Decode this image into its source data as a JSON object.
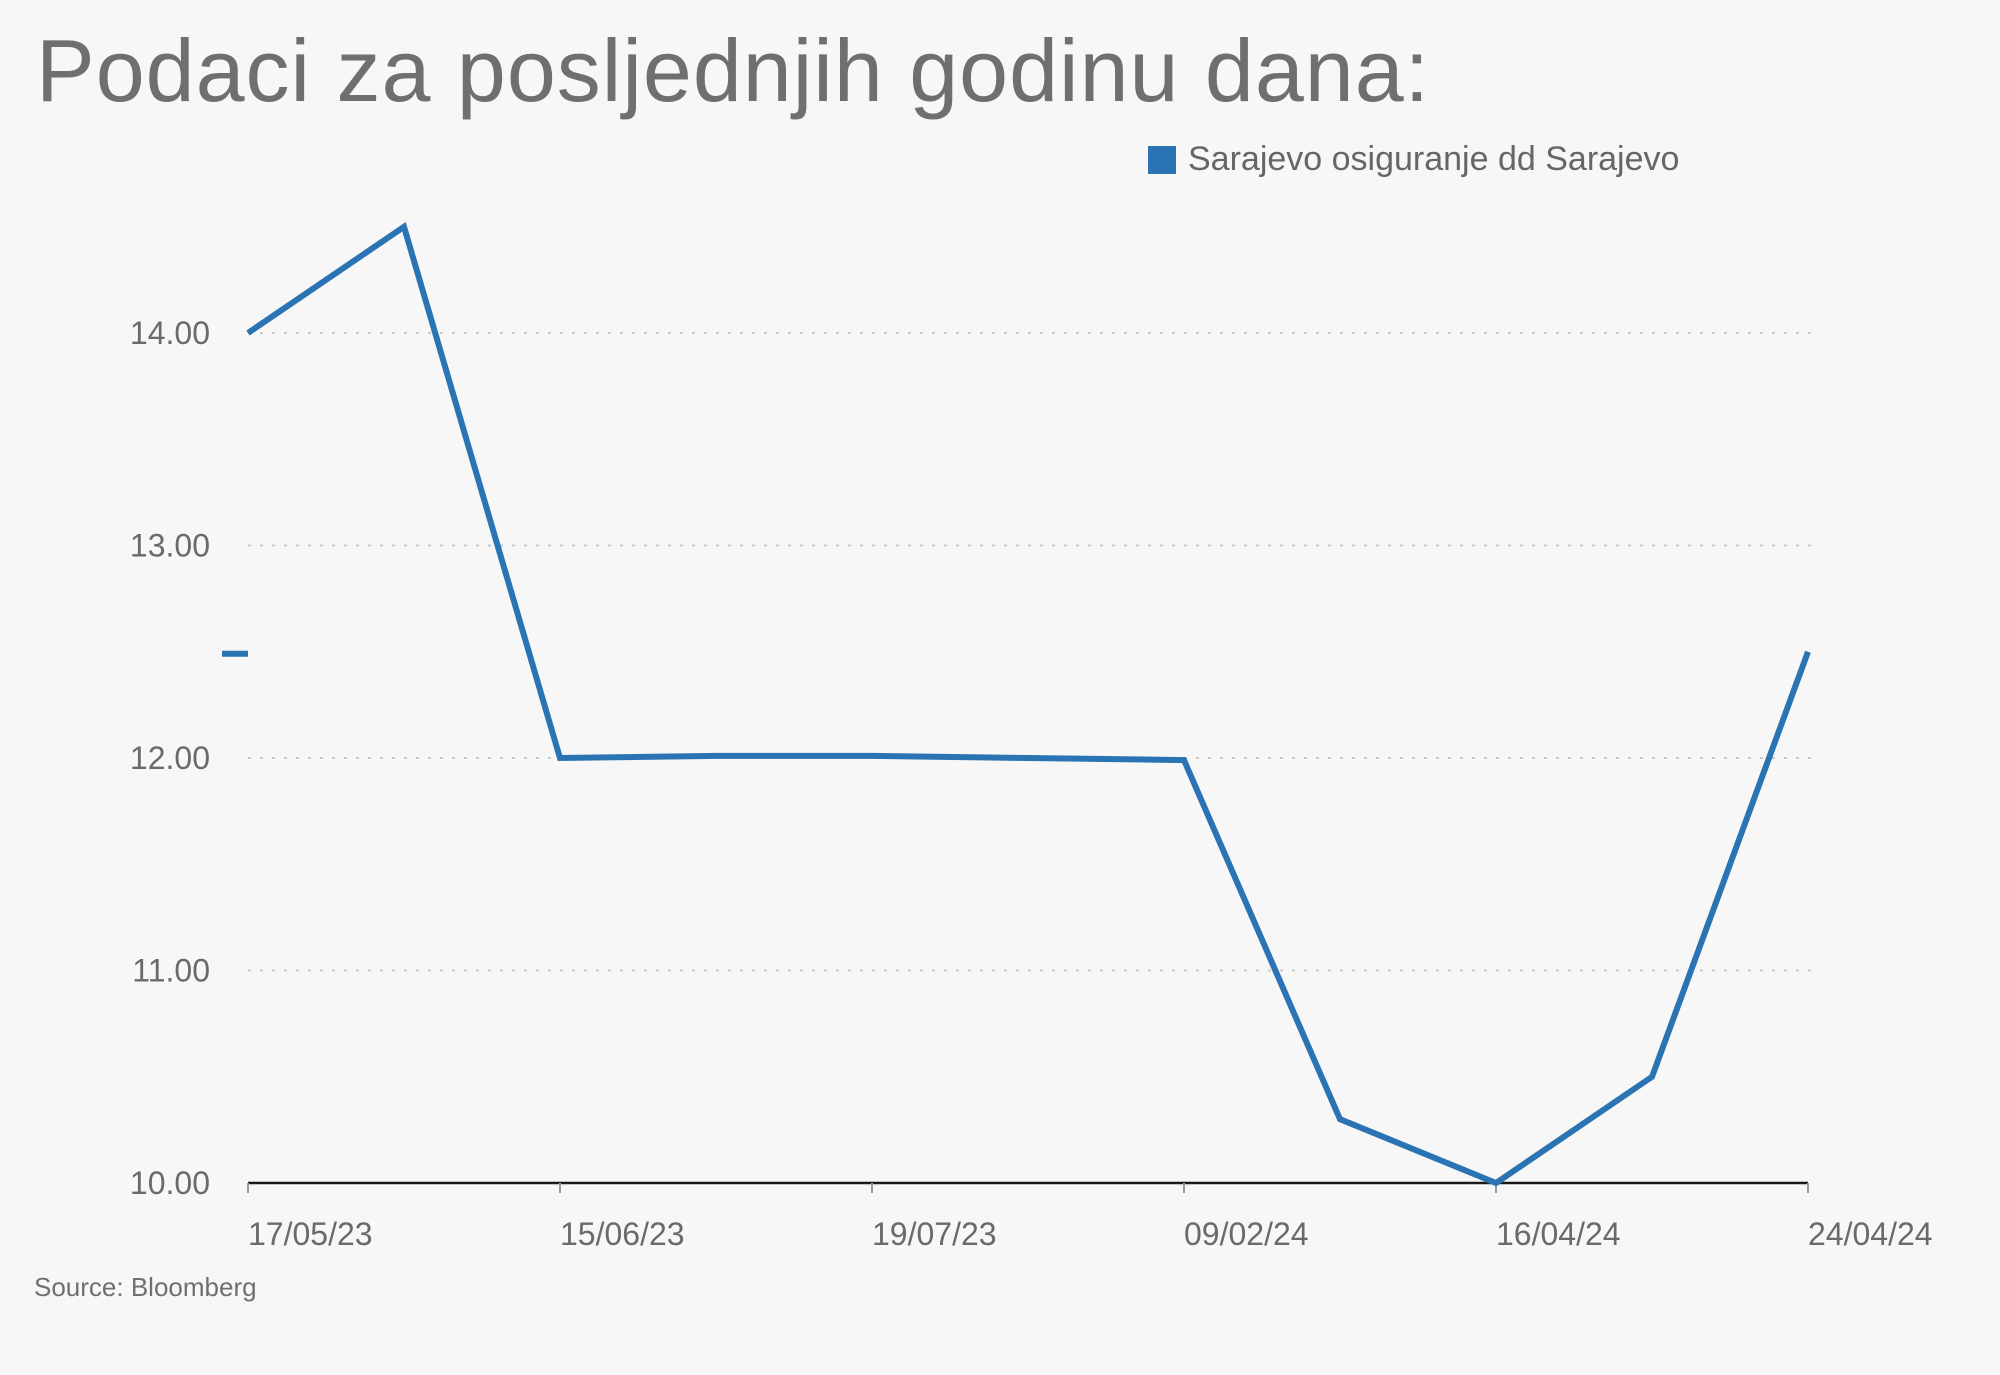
{
  "title": "Podaci za posljednjih godinu dana:",
  "source": "Source: Bloomberg",
  "chart_data": {
    "type": "line",
    "title": "Podaci za posljednjih godinu dana:",
    "x": [
      "17/05/23",
      "",
      "15/06/23",
      "",
      "19/07/23",
      "",
      "09/02/24",
      "",
      "16/04/24",
      "",
      "24/04/24"
    ],
    "x_tick_labels": [
      "17/05/23",
      "15/06/23",
      "19/07/23",
      "09/02/24",
      "16/04/24",
      "24/04/24"
    ],
    "series": [
      {
        "name": "Sarajevo osiguranje dd Sarajevo",
        "color": "#2a74b3",
        "values": [
          14.0,
          14.5,
          12.0,
          12.01,
          12.01,
          12.0,
          11.99,
          10.3,
          10.0,
          10.5,
          12.5
        ]
      }
    ],
    "ylim": [
      10.0,
      14.5
    ],
    "y_ticks": [
      "10.00",
      "11.00",
      "12.00",
      "13.00",
      "14.00"
    ],
    "y_tick_values": [
      10,
      11,
      12,
      13,
      14
    ],
    "grid": "horizontal dotted",
    "legend_position": "top-right",
    "xlabel": "",
    "ylabel": ""
  }
}
